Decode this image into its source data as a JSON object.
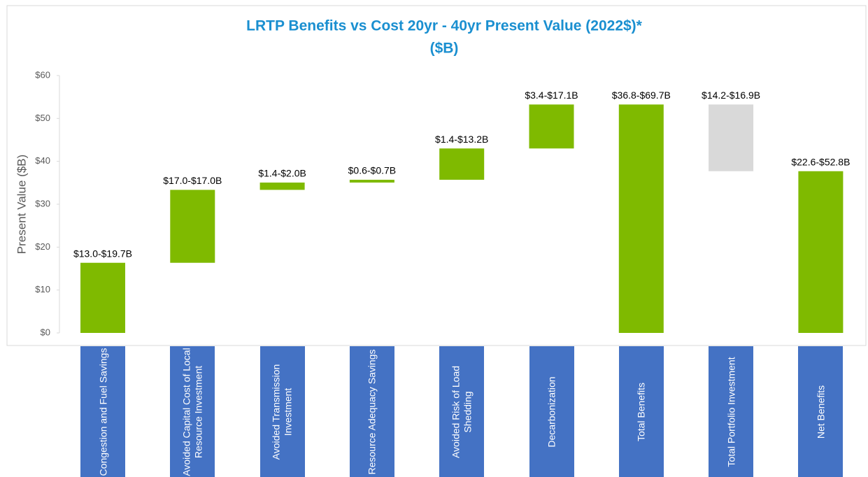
{
  "chart_data": {
    "type": "waterfall",
    "title": [
      "LRTP Benefits vs Cost 20yr - 40yr Present Value (2022$)*",
      "($B)"
    ],
    "y_label": "Present Value ($B)",
    "categories": [
      "Congestion and Fuel Savings",
      "Avoided Capital Cost of Local Resource Investment",
      "Avoided Transmission Investment",
      "Resource Adequacy Savings",
      "Avoided Risk of Load Shedding",
      "Decarbonization",
      "Total Benefits",
      "Total Portfolio Investment",
      "Net Benefits"
    ],
    "values": [
      16.35,
      17.0,
      1.7,
      0.65,
      7.3,
      10.25,
      53.25,
      -15.55,
      37.7
    ],
    "is_total": [
      false,
      false,
      false,
      false,
      false,
      false,
      true,
      false,
      true
    ],
    "range_labels": [
      "$13.0-$19.7B",
      "$17.0-$17.0B",
      "$1.4-$2.0B",
      "$0.6-$0.7B",
      "$1.4-$13.2B",
      "$3.4-$17.1B",
      "$36.8-$69.7B",
      "$14.2-$16.9B",
      "$22.6-$52.8B"
    ],
    "color": "#7fba00",
    "negative_color": "#d9d9d9",
    "category_box_color": "#4472c4",
    "ylim": [
      0,
      60
    ],
    "yticks": [
      {
        "value": 0,
        "label": "$0"
      },
      {
        "value": 10,
        "label": "$10"
      },
      {
        "value": 20,
        "label": "$20"
      },
      {
        "value": 30,
        "label": "$30"
      },
      {
        "value": 40,
        "label": "$40"
      },
      {
        "value": 50,
        "label": "$50"
      },
      {
        "value": 60,
        "label": "$60"
      }
    ],
    "grid": false
  }
}
